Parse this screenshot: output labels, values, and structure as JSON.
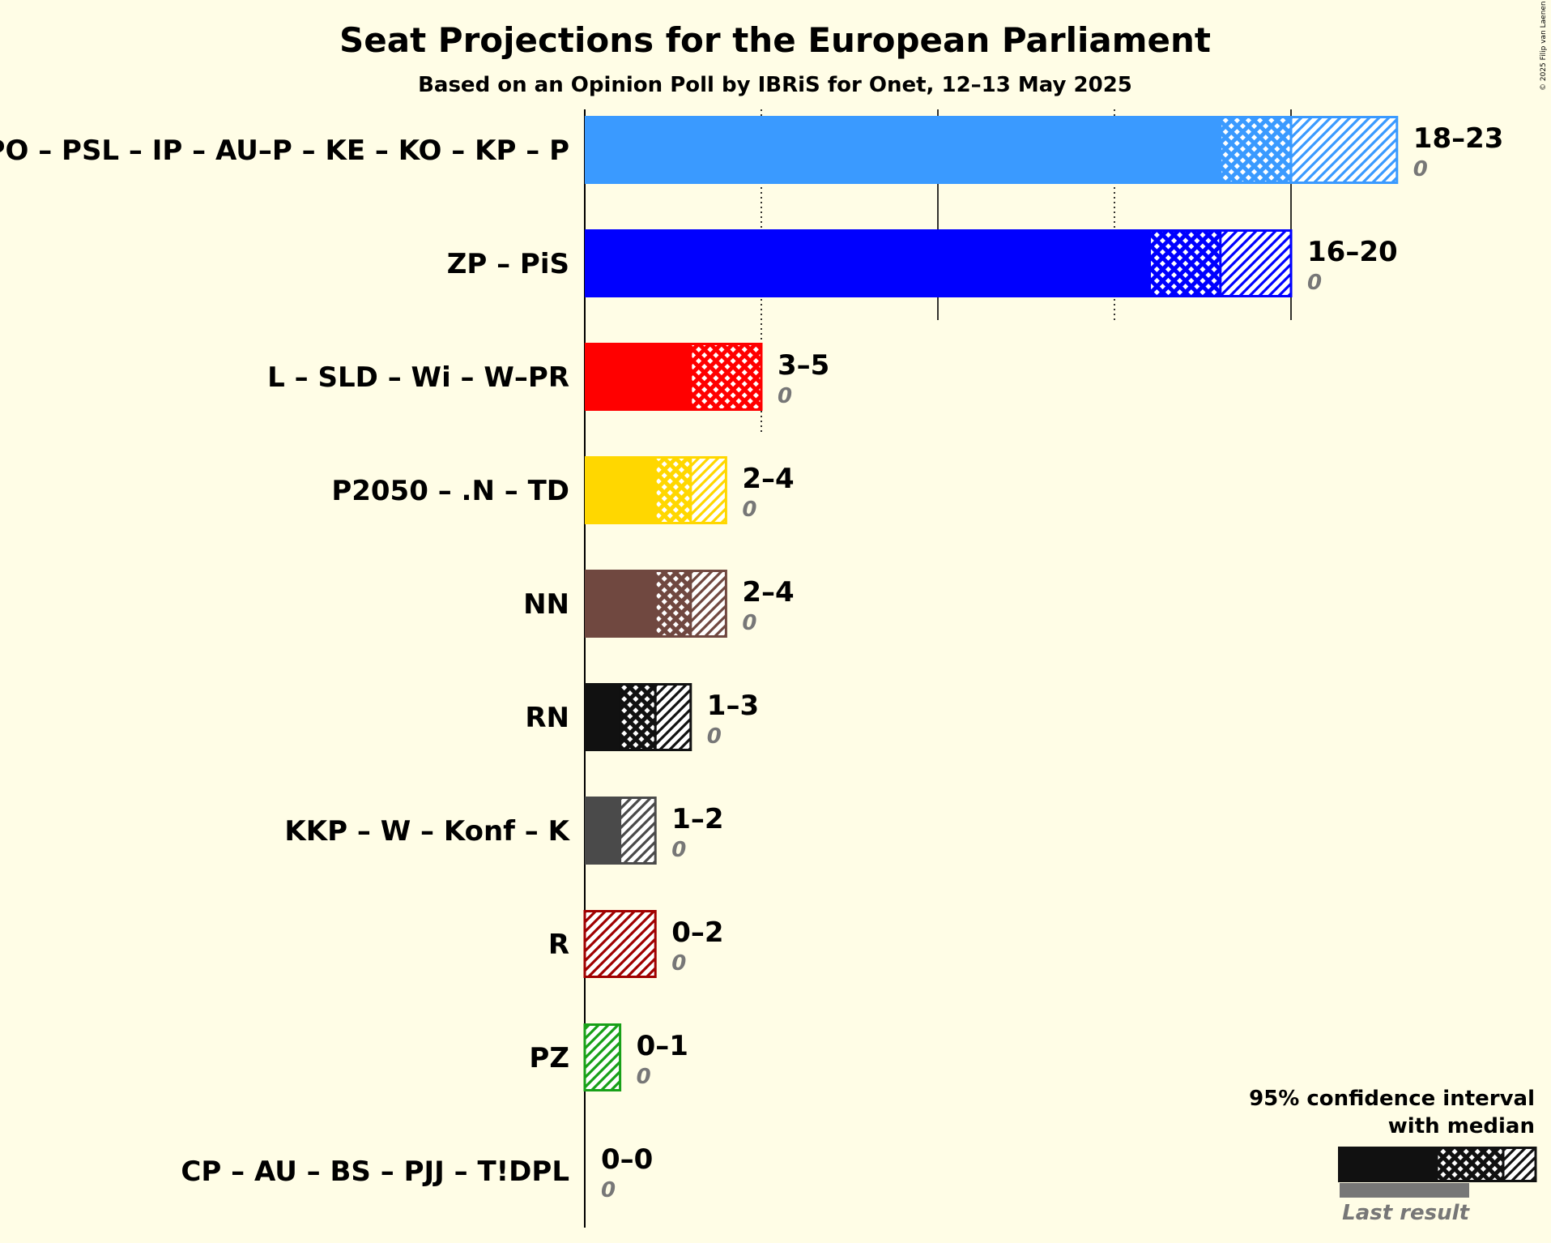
{
  "chart_data": {
    "type": "bar",
    "title": "Seat Projections for the European Parliament",
    "subtitle": "Based on an Opinion Poll by IBRiS for Onet, 12–13 May 2025",
    "copyright": "© 2025 Filip van Laenen",
    "xlim": [
      0,
      23
    ],
    "gridlines_solid": [
      0,
      10,
      20
    ],
    "gridlines_dotted": [
      5,
      15
    ],
    "parties": [
      {
        "name": "PO – PSL – IP – AU–P – KE – KO – KP – P",
        "low": 18,
        "median": 20,
        "high": 23,
        "range_label": "18–23",
        "last_result": "0",
        "color": "#3A9AFF"
      },
      {
        "name": "ZP – PiS",
        "low": 16,
        "median": 18,
        "high": 20,
        "range_label": "16–20",
        "last_result": "0",
        "color": "#0000FF"
      },
      {
        "name": "L – SLD – Wi – W–PR",
        "low": 3,
        "median": 5,
        "high": 5,
        "range_label": "3–5",
        "last_result": "0",
        "color": "#FF0000"
      },
      {
        "name": "P2050 – .N – TD",
        "low": 2,
        "median": 3,
        "high": 4,
        "range_label": "2–4",
        "last_result": "0",
        "color": "#FFD700"
      },
      {
        "name": "NN",
        "low": 2,
        "median": 3,
        "high": 4,
        "range_label": "2–4",
        "last_result": "0",
        "color": "#704840"
      },
      {
        "name": "RN",
        "low": 1,
        "median": 2,
        "high": 3,
        "range_label": "1–3",
        "last_result": "0",
        "color": "#111111"
      },
      {
        "name": "KKP – W – Konf – K",
        "low": 1,
        "median": 1,
        "high": 2,
        "range_label": "1–2",
        "last_result": "0",
        "color": "#4A4A4A"
      },
      {
        "name": "R",
        "low": 0,
        "median": 0,
        "high": 2,
        "range_label": "0–2",
        "last_result": "0",
        "color": "#A00000"
      },
      {
        "name": "PZ",
        "low": 0,
        "median": 0,
        "high": 1,
        "range_label": "0–1",
        "last_result": "0",
        "color": "#18A018"
      },
      {
        "name": "CP – AU – BS – PJJ – T!DPL",
        "low": 0,
        "median": 0,
        "high": 0,
        "range_label": "0–0",
        "last_result": "0",
        "color": "#888888"
      }
    ],
    "legend": {
      "line1": "95% confidence interval",
      "line2": "with median",
      "last_result_label": "Last result",
      "placement": "bottom-right"
    }
  }
}
